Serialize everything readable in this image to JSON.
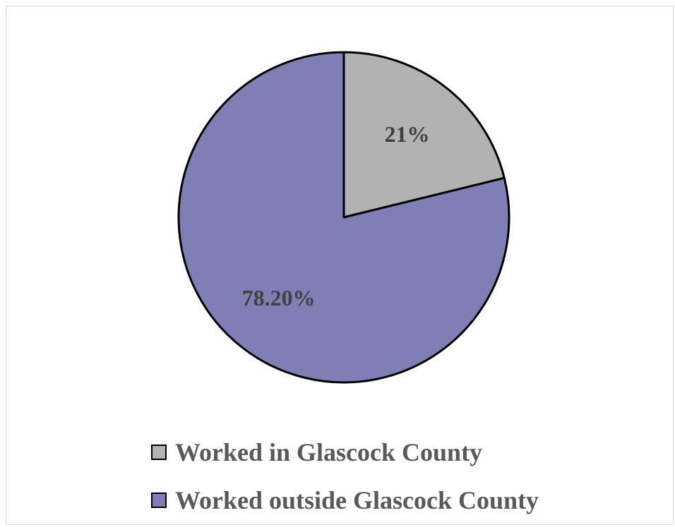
{
  "chart_data": {
    "type": "pie",
    "slices": [
      {
        "label": "Worked in Glascock County",
        "value": 21,
        "display": "21%",
        "color": "#b2b2b2"
      },
      {
        "label": "Worked outside Glascock County",
        "value": 78.2,
        "display": "78.20%",
        "color": "#7f7fb5"
      }
    ],
    "start_angle_deg": 0,
    "direction": "clockwise",
    "outline_color": "#000000",
    "legend_position": "bottom"
  }
}
